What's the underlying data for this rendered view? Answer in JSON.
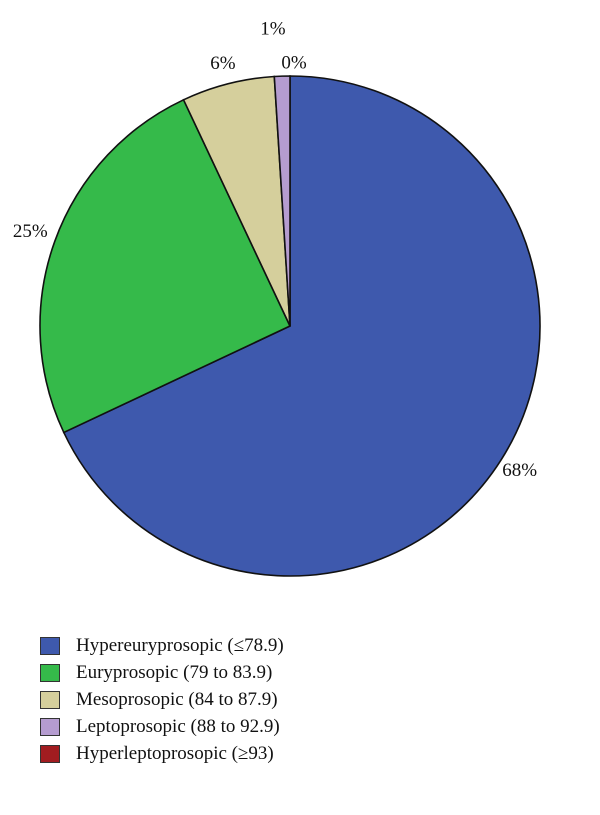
{
  "chart_data": {
    "type": "pie",
    "slices": [
      {
        "label": "Hypereuryprosopic (≤78.9)",
        "value": 68,
        "value_label": "68%",
        "color": "#3e59ad"
      },
      {
        "label": "Euryprosopic (79 to 83.9)",
        "value": 25,
        "value_label": "25%",
        "color": "#35ba4a"
      },
      {
        "label": "Mesoprosopic (84 to 87.9)",
        "value": 6,
        "value_label": "6%",
        "color": "#d5cf9c"
      },
      {
        "label": "Leptoprosopic (88 to 92.9)",
        "value": 1,
        "value_label": "1%",
        "color": "#b59cd0"
      },
      {
        "label": "Hyperleptoprosopic (≥93)",
        "value": 0,
        "value_label": "0%",
        "color": "#a11c20"
      }
    ],
    "legend_position": "bottom-left"
  }
}
